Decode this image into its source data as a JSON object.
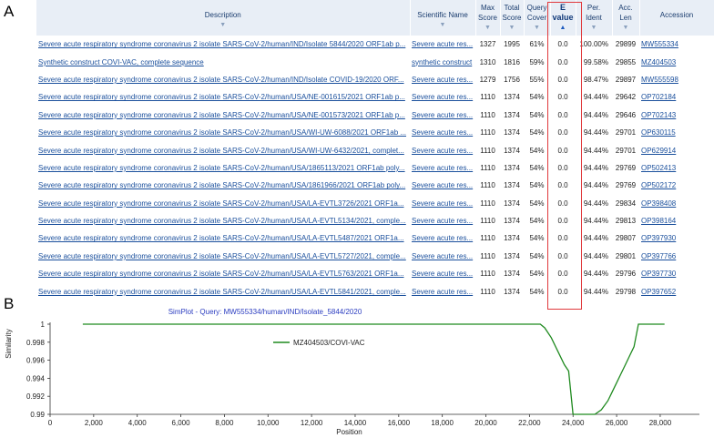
{
  "panels": {
    "a": "A",
    "b": "B"
  },
  "table": {
    "headers": {
      "description": "Description",
      "scientific_name": "Scientific Name",
      "max_score": "Max\nScore",
      "total_score": "Total\nScore",
      "query_cover": "Query\nCover",
      "e_value": "E\nvalue",
      "per_ident": "Per.\nIdent",
      "acc_len": "Acc.\nLen",
      "accession": "Accession"
    },
    "rows": [
      {
        "description": "Severe acute respiratory syndrome coronavirus 2 isolate SARS-CoV-2/human/IND/Isolate 5844/2020 ORF1ab p...",
        "sci": "Severe acute res...",
        "max": "1327",
        "total": "1995",
        "cover": "61%",
        "evalue": "0.0",
        "ident": "100.00%",
        "len": "29899",
        "acc": "MW555334"
      },
      {
        "description": "Synthetic construct COVI-VAC, complete sequence",
        "sci": "synthetic construct",
        "max": "1310",
        "total": "1816",
        "cover": "59%",
        "evalue": "0.0",
        "ident": "99.58%",
        "len": "29855",
        "acc": "MZ404503"
      },
      {
        "description": "Severe acute respiratory syndrome coronavirus 2 isolate SARS-CoV-2/human/IND/Isolate COVID-19/2020 ORF...",
        "sci": "Severe acute res...",
        "max": "1279",
        "total": "1756",
        "cover": "55%",
        "evalue": "0.0",
        "ident": "98.47%",
        "len": "29897",
        "acc": "MW555598"
      },
      {
        "description": "Severe acute respiratory syndrome coronavirus 2 isolate SARS-CoV-2/human/USA/NE-001615/2021 ORF1ab p...",
        "sci": "Severe acute res...",
        "max": "1110",
        "total": "1374",
        "cover": "54%",
        "evalue": "0.0",
        "ident": "94.44%",
        "len": "29642",
        "acc": "OP702184"
      },
      {
        "description": "Severe acute respiratory syndrome coronavirus 2 isolate SARS-CoV-2/human/USA/NE-001573/2021 ORF1ab p...",
        "sci": "Severe acute res...",
        "max": "1110",
        "total": "1374",
        "cover": "54%",
        "evalue": "0.0",
        "ident": "94.44%",
        "len": "29646",
        "acc": "OP702143"
      },
      {
        "description": "Severe acute respiratory syndrome coronavirus 2 isolate SARS-CoV-2/human/USA/WI-UW-6088/2021 ORF1ab ...",
        "sci": "Severe acute res...",
        "max": "1110",
        "total": "1374",
        "cover": "54%",
        "evalue": "0.0",
        "ident": "94.44%",
        "len": "29701",
        "acc": "OP630115"
      },
      {
        "description": "Severe acute respiratory syndrome coronavirus 2 isolate SARS-CoV-2/human/USA/WI-UW-6432/2021, complet...",
        "sci": "Severe acute res...",
        "max": "1110",
        "total": "1374",
        "cover": "54%",
        "evalue": "0.0",
        "ident": "94.44%",
        "len": "29701",
        "acc": "OP629914"
      },
      {
        "description": "Severe acute respiratory syndrome coronavirus 2 isolate SARS-CoV-2/human/USA/1865113/2021 ORF1ab poly...",
        "sci": "Severe acute res...",
        "max": "1110",
        "total": "1374",
        "cover": "54%",
        "evalue": "0.0",
        "ident": "94.44%",
        "len": "29769",
        "acc": "OP502413"
      },
      {
        "description": "Severe acute respiratory syndrome coronavirus 2 isolate SARS-CoV-2/human/USA/1861966/2021 ORF1ab poly...",
        "sci": "Severe acute res...",
        "max": "1110",
        "total": "1374",
        "cover": "54%",
        "evalue": "0.0",
        "ident": "94.44%",
        "len": "29769",
        "acc": "OP502172"
      },
      {
        "description": "Severe acute respiratory syndrome coronavirus 2 isolate SARS-CoV-2/human/USA/LA-EVTL3726/2021 ORF1a...",
        "sci": "Severe acute res...",
        "max": "1110",
        "total": "1374",
        "cover": "54%",
        "evalue": "0.0",
        "ident": "94.44%",
        "len": "29834",
        "acc": "OP398408"
      },
      {
        "description": "Severe acute respiratory syndrome coronavirus 2 isolate SARS-CoV-2/human/USA/LA-EVTL5134/2021, comple...",
        "sci": "Severe acute res...",
        "max": "1110",
        "total": "1374",
        "cover": "54%",
        "evalue": "0.0",
        "ident": "94.44%",
        "len": "29813",
        "acc": "OP398164"
      },
      {
        "description": "Severe acute respiratory syndrome coronavirus 2 isolate SARS-CoV-2/human/USA/LA-EVTL5487/2021 ORF1a...",
        "sci": "Severe acute res...",
        "max": "1110",
        "total": "1374",
        "cover": "54%",
        "evalue": "0.0",
        "ident": "94.44%",
        "len": "29807",
        "acc": "OP397930"
      },
      {
        "description": "Severe acute respiratory syndrome coronavirus 2 isolate SARS-CoV-2/human/USA/LA-EVTL5727/2021, comple...",
        "sci": "Severe acute res...",
        "max": "1110",
        "total": "1374",
        "cover": "54%",
        "evalue": "0.0",
        "ident": "94.44%",
        "len": "29801",
        "acc": "OP397766"
      },
      {
        "description": "Severe acute respiratory syndrome coronavirus 2 isolate SARS-CoV-2/human/USA/LA-EVTL5763/2021 ORF1a...",
        "sci": "Severe acute res...",
        "max": "1110",
        "total": "1374",
        "cover": "54%",
        "evalue": "0.0",
        "ident": "94.44%",
        "len": "29796",
        "acc": "OP397730"
      },
      {
        "description": "Severe acute respiratory syndrome coronavirus 2 isolate SARS-CoV-2/human/USA/LA-EVTL5841/2021, comple...",
        "sci": "Severe acute res...",
        "max": "1110",
        "total": "1374",
        "cover": "54%",
        "evalue": "0.0",
        "ident": "94.44%",
        "len": "29798",
        "acc": "OP397652"
      }
    ],
    "highlight_color": "#e0393c",
    "link_color": "#1a4f9c",
    "header_bg": "#e8eef6"
  },
  "chart_data": {
    "type": "line",
    "title": "SimPlot - Query: MW555334/human/IND/Isolate_5844/2020",
    "xlabel": "Position",
    "ylabel": "Similarity",
    "xlim": [
      0,
      29800
    ],
    "ylim": [
      0.99,
      1.0
    ],
    "x_ticks": [
      "0",
      "2,000",
      "4,000",
      "6,000",
      "8,000",
      "10,000",
      "12,000",
      "14,000",
      "16,000",
      "18,000",
      "20,000",
      "22,000",
      "24,000",
      "26,000",
      "28,000"
    ],
    "y_ticks": [
      "0.99",
      "0.992",
      "0.994",
      "0.996",
      "0.998",
      "1"
    ],
    "legend_placement": "top-left",
    "series": [
      {
        "name": "MZ404503/COVI-VAC",
        "color": "#1f8a1f",
        "x": [
          1500,
          22500,
          22700,
          23000,
          23300,
          23600,
          23800,
          24000,
          25000,
          25300,
          25600,
          25800,
          26000,
          26200,
          26400,
          26600,
          26800,
          27000,
          28200
        ],
        "y": [
          1.0,
          1.0,
          0.9996,
          0.9985,
          0.997,
          0.9955,
          0.9948,
          0.99,
          0.99,
          0.9905,
          0.9915,
          0.9925,
          0.9935,
          0.9945,
          0.9955,
          0.9965,
          0.9975,
          1.0,
          1.0
        ]
      }
    ]
  }
}
